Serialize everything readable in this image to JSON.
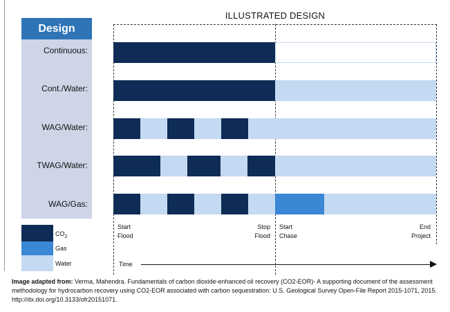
{
  "title": "ILLUSTRATED DESIGN",
  "design_header": "Design",
  "colors": {
    "co2": "#0e2c55",
    "gas": "#3a87d6",
    "water": "#c4d9f2",
    "design_column": "#cdd5e6",
    "design_header": "#2f74b6"
  },
  "rows": [
    {
      "label": "Continuous:"
    },
    {
      "label": "Cont./Water:"
    },
    {
      "label": "WAG/Water:"
    },
    {
      "label": "TWAG/Water:"
    },
    {
      "label": "WAG/Gas:"
    }
  ],
  "legend": [
    {
      "label": "CO",
      "sub": "2",
      "color": "co2"
    },
    {
      "label": "Gas",
      "color": "gas"
    },
    {
      "label": "Water",
      "color": "water"
    }
  ],
  "axis": {
    "start_flood_1": "Start",
    "start_flood_2": "Flood",
    "stop_flood_1": "Stop",
    "stop_flood_2": "Flood",
    "start_chase_1": "Start",
    "start_chase_2": "Chase",
    "end_project_1": "End",
    "end_project_2": "Project",
    "time": "Time"
  },
  "caption": {
    "bold": "Image adapted from:",
    "text": " Verma, Mahendra. Fundamentals of carbon dioxide-enhanced oil recovery (CO2-EOR)- A supporting document of the assessment methodology for hydrocarbon recovery using CO2-EOR associated with carbon sequestration: U.S. Geological Survey Open-File Report 2015-1071, 2015. http://dx.doi.org/10.3133/ofr20151071."
  }
}
